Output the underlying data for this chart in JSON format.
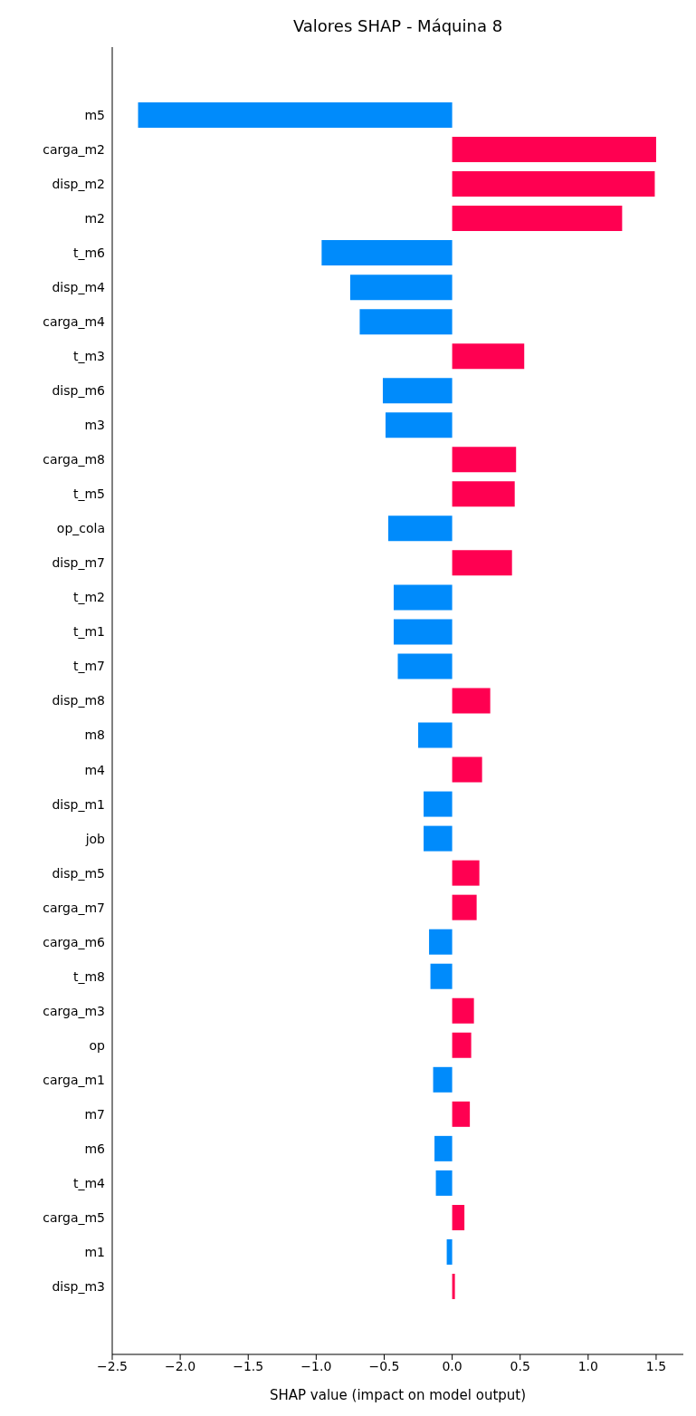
{
  "chart_data": {
    "type": "bar",
    "orientation": "horizontal",
    "title": "Valores SHAP - Máquina 8",
    "xlabel": "SHAP value (impact on model output)",
    "categories": [
      "m5",
      "carga_m2",
      "disp_m2",
      "m2",
      "t_m6",
      "disp_m4",
      "carga_m4",
      "t_m3",
      "disp_m6",
      "m3",
      "carga_m8",
      "t_m5",
      "op_cola",
      "disp_m7",
      "t_m2",
      "t_m1",
      "t_m7",
      "disp_m8",
      "m8",
      "m4",
      "disp_m1",
      "job",
      "disp_m5",
      "carga_m7",
      "carga_m6",
      "t_m8",
      "carga_m3",
      "op",
      "carga_m1",
      "m7",
      "m6",
      "t_m4",
      "carga_m5",
      "m1",
      "disp_m3"
    ],
    "values": [
      -2.31,
      1.5,
      1.49,
      1.25,
      -0.96,
      -0.75,
      -0.68,
      0.53,
      -0.51,
      -0.49,
      0.47,
      0.46,
      -0.47,
      0.44,
      -0.43,
      -0.43,
      -0.4,
      0.28,
      -0.25,
      0.22,
      -0.21,
      -0.21,
      0.2,
      0.18,
      -0.17,
      -0.16,
      0.16,
      0.14,
      -0.14,
      0.13,
      -0.13,
      -0.12,
      0.09,
      -0.04,
      0.02
    ],
    "colors": [
      "#008bfb",
      "#ff0051",
      "#ff0051",
      "#ff0051",
      "#008bfb",
      "#008bfb",
      "#008bfb",
      "#ff0051",
      "#008bfb",
      "#008bfb",
      "#ff0051",
      "#ff0051",
      "#008bfb",
      "#ff0051",
      "#008bfb",
      "#008bfb",
      "#008bfb",
      "#ff0051",
      "#008bfb",
      "#ff0051",
      "#008bfb",
      "#008bfb",
      "#ff0051",
      "#ff0051",
      "#008bfb",
      "#008bfb",
      "#ff0051",
      "#ff0051",
      "#008bfb",
      "#ff0051",
      "#008bfb",
      "#008bfb",
      "#ff0051",
      "#008bfb",
      "#ff0051"
    ],
    "xlim": [
      -2.5,
      1.7
    ],
    "xticks": [
      {
        "value": -2.5,
        "label": "−2.5"
      },
      {
        "value": -2,
        "label": "−2.0"
      },
      {
        "value": -1.5,
        "label": "−1.5"
      },
      {
        "value": -1,
        "label": "−1.0"
      },
      {
        "value": -0.5,
        "label": "−0.5"
      },
      {
        "value": 0,
        "label": "0.0"
      },
      {
        "value": 0.5,
        "label": "0.5"
      },
      {
        "value": 1,
        "label": "1.0"
      },
      {
        "value": 1.5,
        "label": "1.5"
      }
    ],
    "grid": false
  }
}
